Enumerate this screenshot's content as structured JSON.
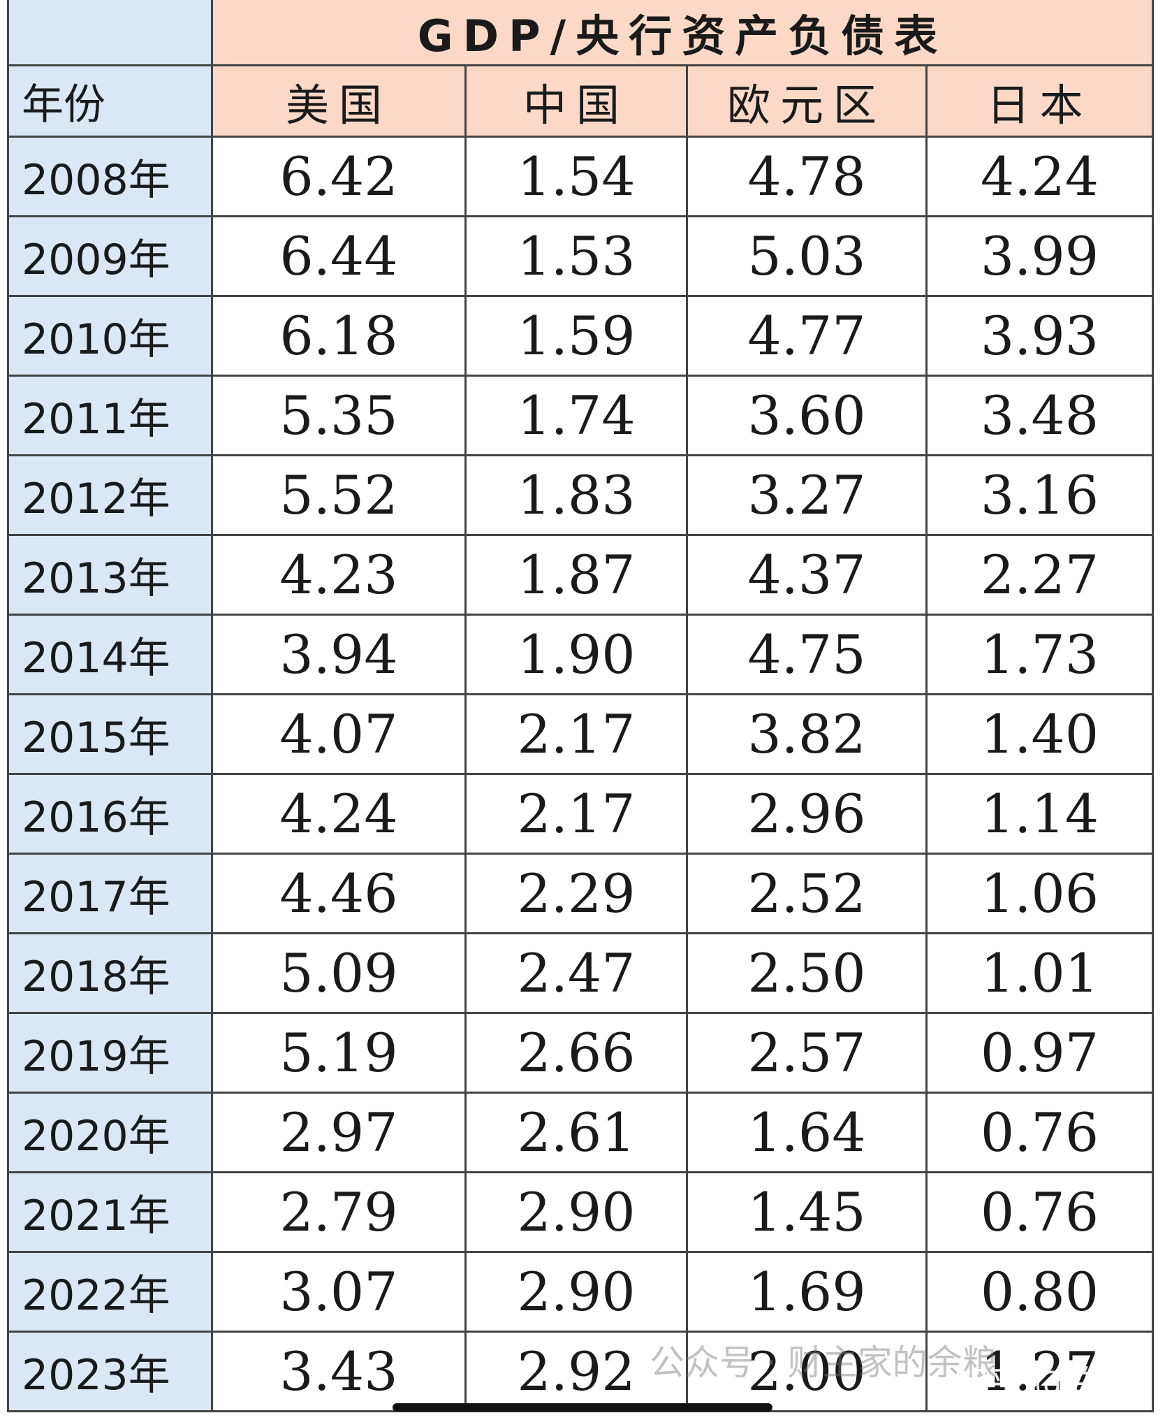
{
  "header": {
    "title": "GDP/央行资产负债表",
    "year_label": "年份",
    "columns": [
      "美国",
      "中国",
      "欧元区",
      "日本"
    ]
  },
  "table": {
    "rows": [
      [
        "2008年",
        "6.42",
        "1.54",
        "4.78",
        "4.24"
      ],
      [
        "2009年",
        "6.44",
        "1.53",
        "5.03",
        "3.99"
      ],
      [
        "2010年",
        "6.18",
        "1.59",
        "4.77",
        "3.93"
      ],
      [
        "2011年",
        "5.35",
        "1.74",
        "3.60",
        "3.48"
      ],
      [
        "2012年",
        "5.52",
        "1.83",
        "3.27",
        "3.16"
      ],
      [
        "2013年",
        "4.23",
        "1.87",
        "4.37",
        "2.27"
      ],
      [
        "2014年",
        "3.94",
        "1.90",
        "4.75",
        "1.73"
      ],
      [
        "2015年",
        "4.07",
        "2.17",
        "3.82",
        "1.40"
      ],
      [
        "2016年",
        "4.24",
        "2.17",
        "2.96",
        "1.14"
      ],
      [
        "2017年",
        "4.46",
        "2.29",
        "2.52",
        "1.06"
      ],
      [
        "2018年",
        "5.09",
        "2.47",
        "2.50",
        "1.01"
      ],
      [
        "2019年",
        "5.19",
        "2.66",
        "2.57",
        "0.97"
      ],
      [
        "2020年",
        "2.97",
        "2.61",
        "1.64",
        "0.76"
      ],
      [
        "2021年",
        "2.79",
        "2.90",
        "1.45",
        "0.76"
      ],
      [
        "2022年",
        "3.07",
        "2.90",
        "1.69",
        "0.80"
      ],
      [
        "2023年",
        "3.43",
        "2.92",
        "2.00",
        "1.27"
      ]
    ]
  },
  "watermarks": [
    "公众号 · 财主家的余粮",
    "知乎 @白鸥"
  ]
}
